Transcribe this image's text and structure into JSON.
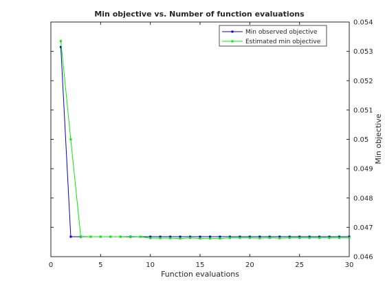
{
  "chart_data": {
    "type": "line",
    "title": "Min objective vs. Number of function evaluations",
    "xlabel": "Function evaluations",
    "ylabel": "Min objective",
    "xlim": [
      0,
      30
    ],
    "ylim": [
      0.046,
      0.054
    ],
    "x_ticks": [
      "0",
      "5",
      "10",
      "15",
      "20",
      "25",
      "30"
    ],
    "y_ticks": [
      "0.046",
      "0.047",
      "0.048",
      "0.049",
      "0.05",
      "0.051",
      "0.052",
      "0.053",
      "0.054"
    ],
    "y_axis_position": "right",
    "grid": false,
    "legend_position": "top-right",
    "x": [
      1,
      2,
      3,
      4,
      5,
      6,
      7,
      8,
      9,
      10,
      11,
      12,
      13,
      14,
      15,
      16,
      17,
      18,
      19,
      20,
      21,
      22,
      23,
      24,
      25,
      26,
      27,
      28,
      29,
      30
    ],
    "series": [
      {
        "name": "Min observed objective",
        "color": "#0000cc",
        "values": [
          0.05315,
          0.04668,
          0.04668,
          0.04668,
          0.04668,
          0.04668,
          0.04668,
          0.04668,
          0.04668,
          0.04668,
          0.04668,
          0.04668,
          0.04668,
          0.04668,
          0.04668,
          0.04668,
          0.04668,
          0.04668,
          0.04668,
          0.04668,
          0.04668,
          0.04668,
          0.04668,
          0.04668,
          0.04668,
          0.04668,
          0.04668,
          0.04668,
          0.04668,
          0.04668
        ]
      },
      {
        "name": "Estimated min objective",
        "color": "#00ee00",
        "values": [
          0.05335,
          0.05,
          0.04669,
          0.04668,
          0.04668,
          0.04668,
          0.04668,
          0.04667,
          0.04668,
          0.04663,
          0.04663,
          0.04663,
          0.04662,
          0.04664,
          0.04662,
          0.04662,
          0.04662,
          0.04664,
          0.04664,
          0.04664,
          0.04663,
          0.04664,
          0.04663,
          0.04664,
          0.04664,
          0.04664,
          0.04664,
          0.04664,
          0.04664,
          0.04664
        ]
      }
    ]
  }
}
